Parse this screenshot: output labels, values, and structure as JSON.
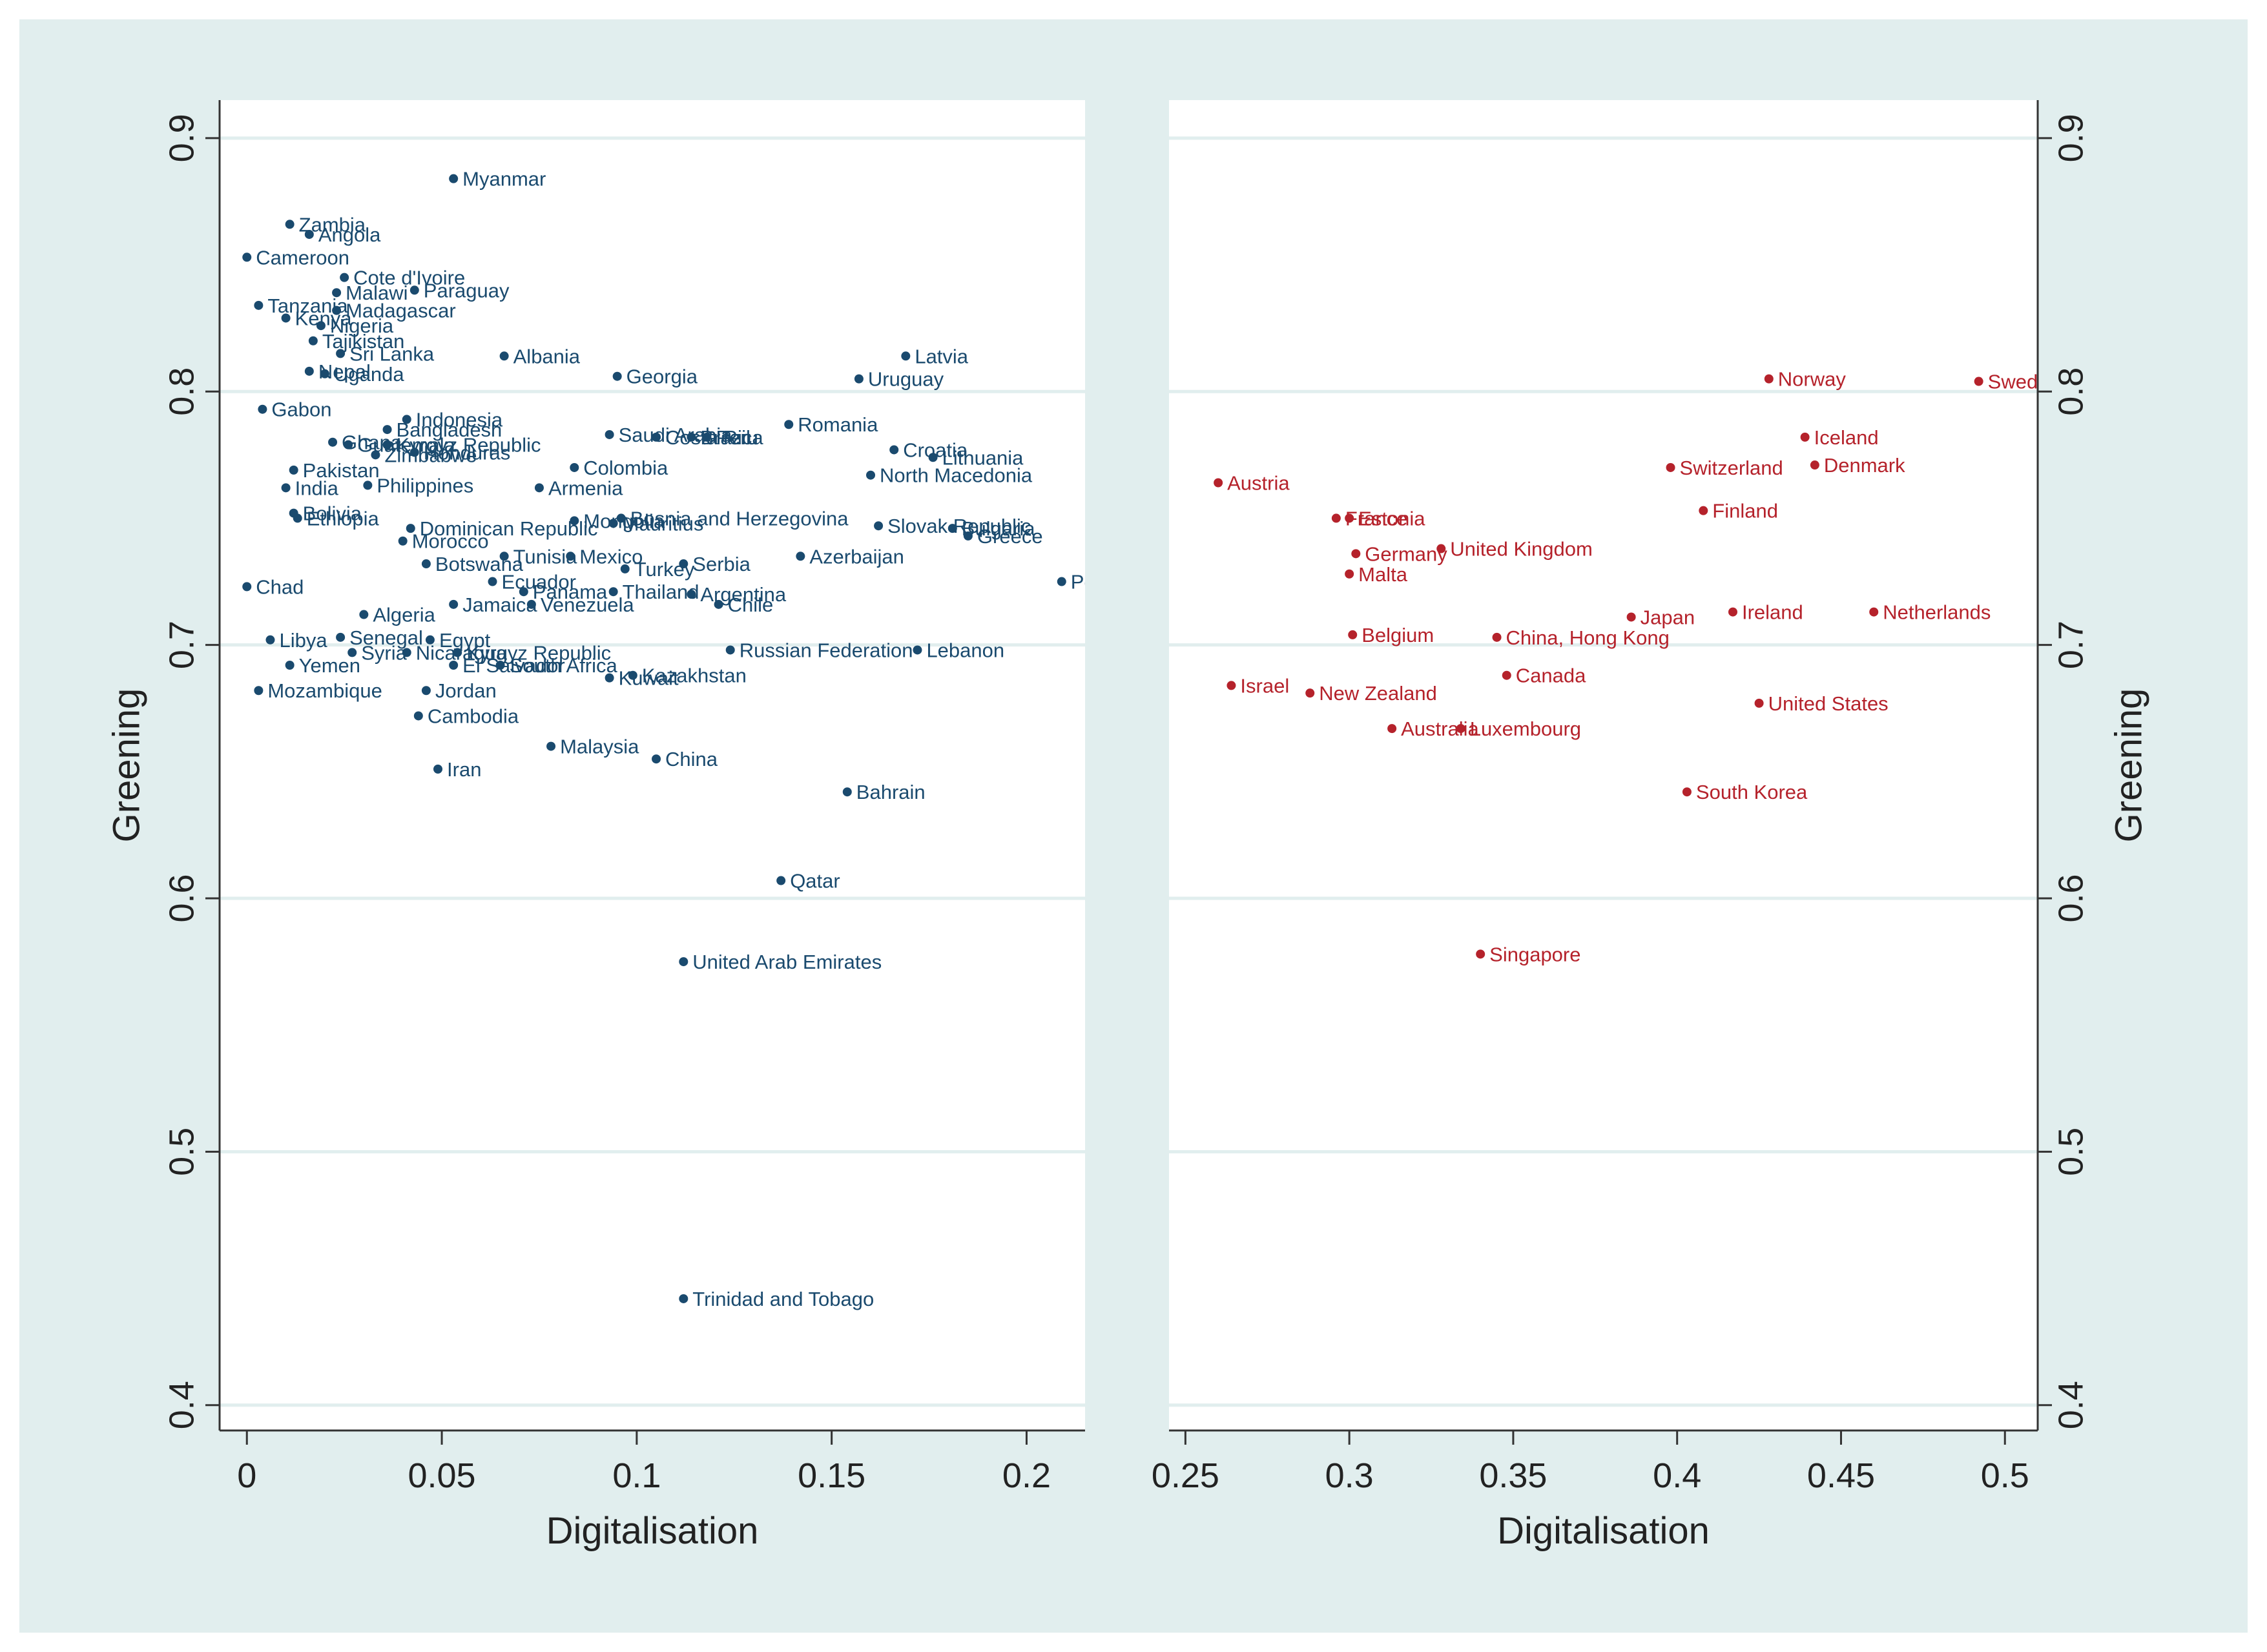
{
  "chart_data": [
    {
      "type": "scatter",
      "name": "left",
      "xlabel": "Digitalisation",
      "ylabel": "Greening",
      "xlim": [
        -0.007,
        0.215
      ],
      "ylim": [
        0.39,
        0.915
      ],
      "xticks": [
        "0",
        "0.05",
        "0.1",
        "0.15",
        "0.2"
      ],
      "xtick_values": [
        0,
        0.05,
        0.1,
        0.15,
        0.2
      ],
      "yticks": [
        "0.4",
        "0.5",
        "0.6",
        "0.7",
        "0.8",
        "0.9"
      ],
      "ytick_values": [
        0.4,
        0.5,
        0.6,
        0.7,
        0.8,
        0.9
      ],
      "color": "#1a4a6e",
      "grid": true,
      "points": [
        {
          "label": "Myanmar",
          "x": 0.053,
          "y": 0.884
        },
        {
          "label": "Zambia",
          "x": 0.011,
          "y": 0.866
        },
        {
          "label": "Angola",
          "x": 0.016,
          "y": 0.862
        },
        {
          "label": "Cameroon",
          "x": 0.0,
          "y": 0.853
        },
        {
          "label": "Cote d'Ivoire",
          "x": 0.025,
          "y": 0.845
        },
        {
          "label": "Malawi",
          "x": 0.023,
          "y": 0.839
        },
        {
          "label": "Paraguay",
          "x": 0.043,
          "y": 0.84
        },
        {
          "label": "Tanzania",
          "x": 0.003,
          "y": 0.834
        },
        {
          "label": "Madagascar",
          "x": 0.023,
          "y": 0.832
        },
        {
          "label": "Kenya",
          "x": 0.01,
          "y": 0.829
        },
        {
          "label": "Nigeria",
          "x": 0.019,
          "y": 0.826
        },
        {
          "label": "Tajikistan",
          "x": 0.017,
          "y": 0.82
        },
        {
          "label": "Sri Lanka",
          "x": 0.024,
          "y": 0.815
        },
        {
          "label": "Albania",
          "x": 0.066,
          "y": 0.814
        },
        {
          "label": "Latvia",
          "x": 0.169,
          "y": 0.814
        },
        {
          "label": "Nepal",
          "x": 0.016,
          "y": 0.808
        },
        {
          "label": "Uganda",
          "x": 0.02,
          "y": 0.807
        },
        {
          "label": "Georgia",
          "x": 0.095,
          "y": 0.806
        },
        {
          "label": "Uruguay",
          "x": 0.157,
          "y": 0.805
        },
        {
          "label": "Gabon",
          "x": 0.004,
          "y": 0.793
        },
        {
          "label": "Indonesia",
          "x": 0.041,
          "y": 0.789
        },
        {
          "label": "Romania",
          "x": 0.139,
          "y": 0.787
        },
        {
          "label": "Bangladesh",
          "x": 0.036,
          "y": 0.785
        },
        {
          "label": "Saudi Arabia",
          "x": 0.093,
          "y": 0.783
        },
        {
          "label": "Costa Rica",
          "x": 0.105,
          "y": 0.782
        },
        {
          "label": "Brazil",
          "x": 0.114,
          "y": 0.782
        },
        {
          "label": "Peru",
          "x": 0.118,
          "y": 0.782
        },
        {
          "label": "Ghana",
          "x": 0.022,
          "y": 0.78
        },
        {
          "label": "Guatemala",
          "x": 0.026,
          "y": 0.779
        },
        {
          "label": "Kyrgyz Republic",
          "x": 0.036,
          "y": 0.779
        },
        {
          "label": "Zimbabwe",
          "x": 0.033,
          "y": 0.775
        },
        {
          "label": "Honduras",
          "x": 0.043,
          "y": 0.776
        },
        {
          "label": "Croatia",
          "x": 0.166,
          "y": 0.777
        },
        {
          "label": "Lithuania",
          "x": 0.176,
          "y": 0.774
        },
        {
          "label": "Colombia",
          "x": 0.084,
          "y": 0.77
        },
        {
          "label": "Pakistan",
          "x": 0.012,
          "y": 0.769
        },
        {
          "label": "North Macedonia",
          "x": 0.16,
          "y": 0.767
        },
        {
          "label": "India",
          "x": 0.01,
          "y": 0.762
        },
        {
          "label": "Philippines",
          "x": 0.031,
          "y": 0.763
        },
        {
          "label": "Armenia",
          "x": 0.075,
          "y": 0.762
        },
        {
          "label": "Bolivia",
          "x": 0.012,
          "y": 0.752
        },
        {
          "label": "Ethiopia",
          "x": 0.013,
          "y": 0.75
        },
        {
          "label": "Bosnia and Herzegovina",
          "x": 0.096,
          "y": 0.75
        },
        {
          "label": "Mongolia",
          "x": 0.084,
          "y": 0.749
        },
        {
          "label": "Mauritius",
          "x": 0.094,
          "y": 0.748
        },
        {
          "label": "Dominican Republic",
          "x": 0.042,
          "y": 0.746
        },
        {
          "label": "Slovak Republic",
          "x": 0.162,
          "y": 0.747
        },
        {
          "label": "Bulgaria",
          "x": 0.181,
          "y": 0.746
        },
        {
          "label": "Greece",
          "x": 0.185,
          "y": 0.743
        },
        {
          "label": "Morocco",
          "x": 0.04,
          "y": 0.741
        },
        {
          "label": "Tunisia",
          "x": 0.066,
          "y": 0.735
        },
        {
          "label": "Mexico",
          "x": 0.083,
          "y": 0.735
        },
        {
          "label": "Azerbaijan",
          "x": 0.142,
          "y": 0.735
        },
        {
          "label": "Botswana",
          "x": 0.046,
          "y": 0.732
        },
        {
          "label": "Turkey",
          "x": 0.097,
          "y": 0.73
        },
        {
          "label": "Serbia",
          "x": 0.112,
          "y": 0.732
        },
        {
          "label": "Poland",
          "x": 0.209,
          "y": 0.725
        },
        {
          "label": "Ecuador",
          "x": 0.063,
          "y": 0.725
        },
        {
          "label": "Chad",
          "x": 0.0,
          "y": 0.723
        },
        {
          "label": "Panama",
          "x": 0.071,
          "y": 0.721
        },
        {
          "label": "Thailand",
          "x": 0.094,
          "y": 0.721
        },
        {
          "label": "Argentina",
          "x": 0.114,
          "y": 0.72
        },
        {
          "label": "Jamaica",
          "x": 0.053,
          "y": 0.716
        },
        {
          "label": "Venezuela",
          "x": 0.073,
          "y": 0.716
        },
        {
          "label": "Chile",
          "x": 0.121,
          "y": 0.716
        },
        {
          "label": "Algeria",
          "x": 0.03,
          "y": 0.712
        },
        {
          "label": "Libya",
          "x": 0.006,
          "y": 0.702
        },
        {
          "label": "Senegal",
          "x": 0.024,
          "y": 0.703
        },
        {
          "label": "Egypt",
          "x": 0.047,
          "y": 0.702
        },
        {
          "label": "Syria",
          "x": 0.027,
          "y": 0.697
        },
        {
          "label": "Nicaragua",
          "x": 0.041,
          "y": 0.697
        },
        {
          "label": "Kyrgyz Republic",
          "x": 0.054,
          "y": 0.697
        },
        {
          "label": "Russian Federation",
          "x": 0.124,
          "y": 0.698
        },
        {
          "label": "Lebanon",
          "x": 0.172,
          "y": 0.698
        },
        {
          "label": "Yemen",
          "x": 0.011,
          "y": 0.692
        },
        {
          "label": "El Salvador",
          "x": 0.053,
          "y": 0.692
        },
        {
          "label": "South Africa",
          "x": 0.065,
          "y": 0.692
        },
        {
          "label": "Kuwait",
          "x": 0.093,
          "y": 0.687
        },
        {
          "label": "Kazakhstan",
          "x": 0.099,
          "y": 0.688
        },
        {
          "label": "Mozambique",
          "x": 0.003,
          "y": 0.682
        },
        {
          "label": "Jordan",
          "x": 0.046,
          "y": 0.682
        },
        {
          "label": "Cambodia",
          "x": 0.044,
          "y": 0.672
        },
        {
          "label": "Malaysia",
          "x": 0.078,
          "y": 0.66
        },
        {
          "label": "China",
          "x": 0.105,
          "y": 0.655
        },
        {
          "label": "Iran",
          "x": 0.049,
          "y": 0.651
        },
        {
          "label": "Bahrain",
          "x": 0.154,
          "y": 0.642
        },
        {
          "label": "Qatar",
          "x": 0.137,
          "y": 0.607
        },
        {
          "label": "United Arab Emirates",
          "x": 0.112,
          "y": 0.575
        },
        {
          "label": "Trinidad and Tobago",
          "x": 0.112,
          "y": 0.442
        }
      ]
    },
    {
      "type": "scatter",
      "name": "right",
      "xlabel": "Digitalisation",
      "ylabel": "Greening",
      "xlim": [
        0.245,
        0.51
      ],
      "ylim": [
        0.39,
        0.915
      ],
      "xticks": [
        "0.25",
        "0.3",
        "0.35",
        "0.4",
        "0.45",
        "0.5"
      ],
      "xtick_values": [
        0.25,
        0.3,
        0.35,
        0.4,
        0.45,
        0.5
      ],
      "yticks": [
        "0.4",
        "0.5",
        "0.6",
        "0.7",
        "0.8",
        "0.9"
      ],
      "ytick_values": [
        0.4,
        0.5,
        0.6,
        0.7,
        0.8,
        0.9
      ],
      "color": "#b5222b",
      "grid": true,
      "points": [
        {
          "label": "Norway",
          "x": 0.428,
          "y": 0.805
        },
        {
          "label": "Sweden",
          "x": 0.492,
          "y": 0.804
        },
        {
          "label": "Iceland",
          "x": 0.439,
          "y": 0.782
        },
        {
          "label": "Switzerland",
          "x": 0.398,
          "y": 0.77
        },
        {
          "label": "Denmark",
          "x": 0.442,
          "y": 0.771
        },
        {
          "label": "Austria",
          "x": 0.26,
          "y": 0.764
        },
        {
          "label": "Finland",
          "x": 0.408,
          "y": 0.753
        },
        {
          "label": "France",
          "x": 0.296,
          "y": 0.75
        },
        {
          "label": "Estonia",
          "x": 0.3,
          "y": 0.75
        },
        {
          "label": "United Kingdom",
          "x": 0.328,
          "y": 0.738
        },
        {
          "label": "Germany",
          "x": 0.302,
          "y": 0.736
        },
        {
          "label": "Malta",
          "x": 0.3,
          "y": 0.728
        },
        {
          "label": "Japan",
          "x": 0.386,
          "y": 0.711
        },
        {
          "label": "Ireland",
          "x": 0.417,
          "y": 0.713
        },
        {
          "label": "Netherlands",
          "x": 0.46,
          "y": 0.713
        },
        {
          "label": "Belgium",
          "x": 0.301,
          "y": 0.704
        },
        {
          "label": "China, Hong Kong",
          "x": 0.345,
          "y": 0.703
        },
        {
          "label": "Canada",
          "x": 0.348,
          "y": 0.688
        },
        {
          "label": "Israel",
          "x": 0.264,
          "y": 0.684
        },
        {
          "label": "New Zealand",
          "x": 0.288,
          "y": 0.681
        },
        {
          "label": "United States",
          "x": 0.425,
          "y": 0.677
        },
        {
          "label": "Australia",
          "x": 0.313,
          "y": 0.667
        },
        {
          "label": "Luxembourg",
          "x": 0.334,
          "y": 0.667
        },
        {
          "label": "South Korea",
          "x": 0.403,
          "y": 0.642
        },
        {
          "label": "Singapore",
          "x": 0.34,
          "y": 0.578
        }
      ]
    }
  ]
}
